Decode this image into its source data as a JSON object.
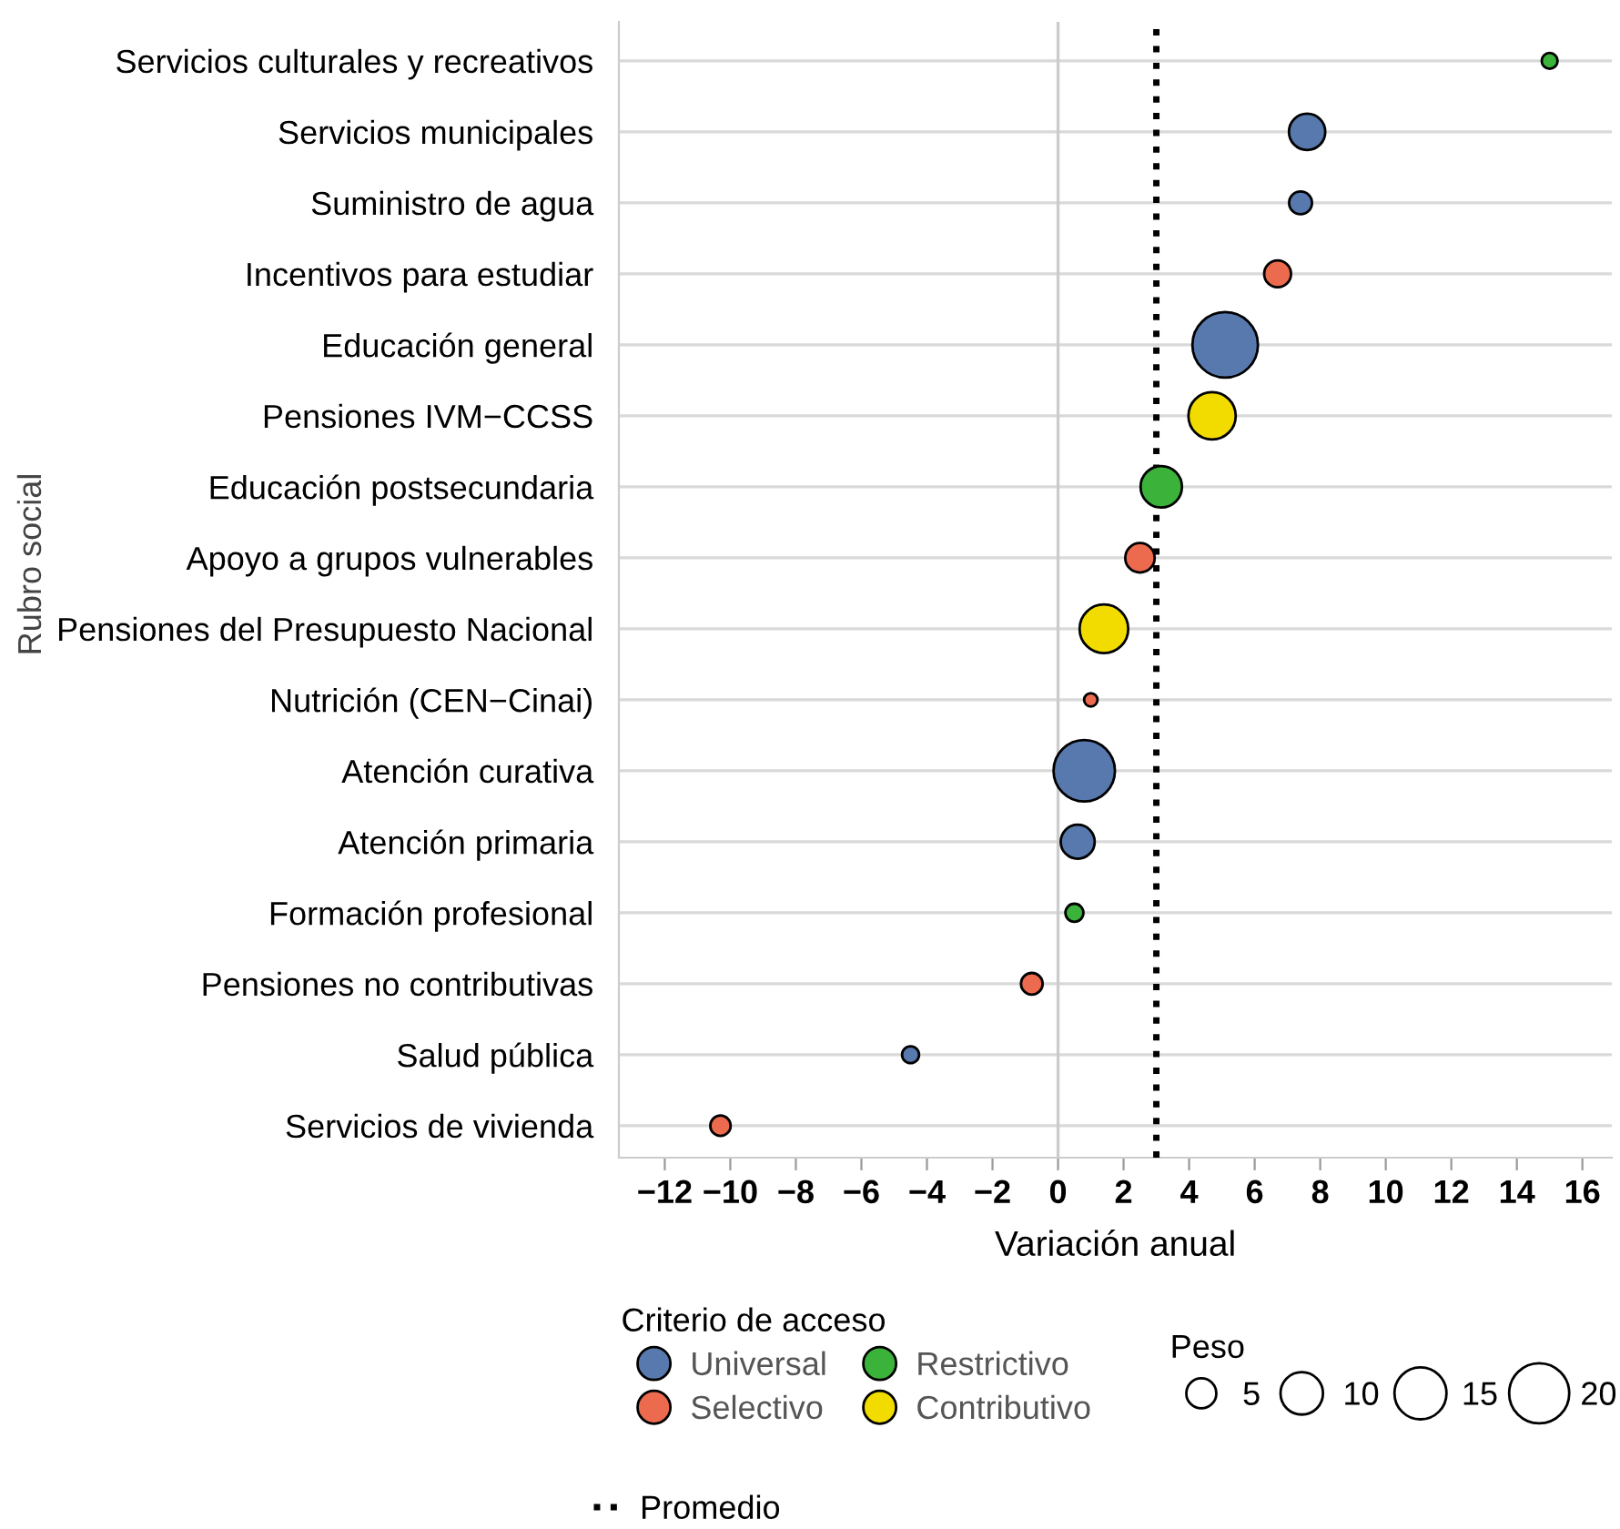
{
  "chart_data": {
    "type": "bubble",
    "orientation": "horizontal",
    "categories": [
      "Servicios culturales y recreativos",
      "Servicios municipales",
      "Suministro de agua",
      "Incentivos para estudiar",
      "Educación general",
      "Pensiones IVM−CCSS",
      "Educación postsecundaria",
      "Apoyo a grupos vulnerables",
      "Pensiones del Presupuesto Nacional",
      "Nutrición (CEN−Cinai)",
      "Atención curativa",
      "Atención primaria",
      "Formación profesional",
      "Pensiones no contributivas",
      "Salud pública",
      "Servicios de vivienda"
    ],
    "series": [
      {
        "name": "Universal",
        "color": "#5779ae",
        "values": [
          null,
          7.6,
          7.4,
          null,
          5.1,
          null,
          null,
          null,
          null,
          null,
          0.8,
          0.6,
          null,
          null,
          -4.5,
          null
        ],
        "sizes": [
          null,
          7.3,
          2.9,
          null,
          23.8,
          null,
          null,
          null,
          null,
          null,
          20.9,
          6.4,
          null,
          null,
          1.6,
          null
        ]
      },
      {
        "name": "Restrictivo",
        "color": "#3bb33b",
        "values": [
          15.0,
          null,
          null,
          null,
          null,
          null,
          3.15,
          null,
          null,
          null,
          null,
          null,
          0.5,
          null,
          null,
          null
        ],
        "sizes": [
          1.4,
          null,
          null,
          null,
          null,
          null,
          9.5,
          null,
          null,
          null,
          null,
          null,
          1.8,
          null,
          null,
          null
        ]
      },
      {
        "name": "Selectivo",
        "color": "#ec6b4e",
        "values": [
          null,
          null,
          null,
          6.7,
          null,
          null,
          null,
          2.5,
          null,
          1.0,
          null,
          null,
          null,
          -0.8,
          null,
          -10.3
        ],
        "sizes": [
          null,
          null,
          null,
          4.0,
          null,
          null,
          null,
          4.8,
          null,
          1.0,
          null,
          null,
          null,
          2.6,
          null,
          2.3
        ]
      },
      {
        "name": "Contributivo",
        "color": "#f2dc00",
        "values": [
          null,
          null,
          null,
          null,
          null,
          4.7,
          null,
          null,
          1.4,
          null,
          null,
          null,
          null,
          null,
          null,
          null
        ],
        "sizes": [
          null,
          null,
          null,
          null,
          null,
          12.4,
          null,
          null,
          13.1,
          null,
          null,
          null,
          null,
          null,
          null,
          null
        ]
      }
    ],
    "size_legend": [
      5,
      10,
      15,
      20
    ],
    "xlim": [
      -13.4,
      16.9
    ],
    "xticks": [
      {
        "value": -12,
        "label": "−12"
      },
      {
        "value": -10,
        "label": "−10"
      },
      {
        "value": -8,
        "label": "−8"
      },
      {
        "value": -6,
        "label": "−6"
      },
      {
        "value": -4,
        "label": "−4"
      },
      {
        "value": -2,
        "label": "−2"
      },
      0,
      2,
      4,
      6,
      8,
      10,
      12,
      14,
      16
    ],
    "xlabel": "Variación anual",
    "ylabel": "Rubro social",
    "ref_lines": [
      {
        "axis": "x",
        "value": 0,
        "color": "#cccccc",
        "line_style": "solid"
      },
      {
        "axis": "x",
        "value": 3.0,
        "label": "Promedio",
        "color": "#000000",
        "line_style": "dotted"
      }
    ],
    "grid": "y",
    "legend": "bottom",
    "legend_title": "Criterio de acceso",
    "annotations": [
      "Peso"
    ]
  }
}
